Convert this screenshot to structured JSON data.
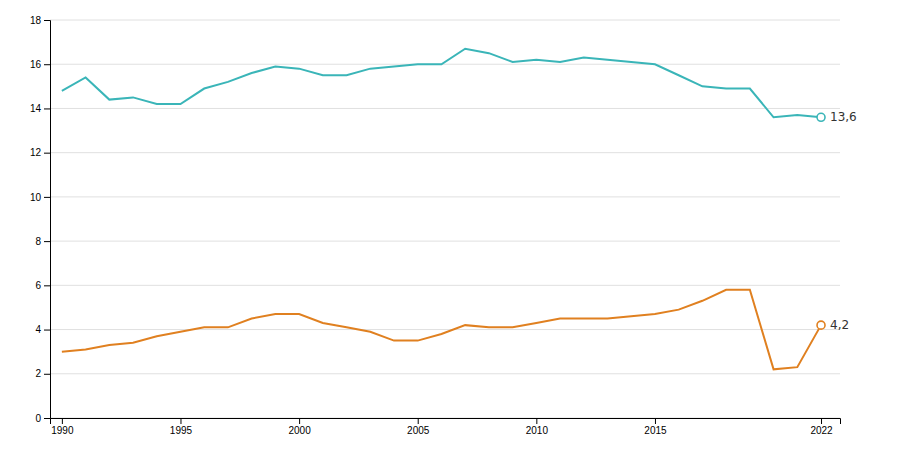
{
  "chart_data": {
    "type": "line",
    "x": [
      1990,
      1991,
      1992,
      1993,
      1994,
      1995,
      1996,
      1997,
      1998,
      1999,
      2000,
      2001,
      2002,
      2003,
      2004,
      2005,
      2006,
      2007,
      2008,
      2009,
      2010,
      2011,
      2012,
      2013,
      2014,
      2015,
      2016,
      2017,
      2018,
      2019,
      2020,
      2021,
      2022
    ],
    "series": [
      {
        "color": "#3ab5b8",
        "values": [
          14.8,
          15.4,
          14.4,
          14.5,
          14.2,
          14.2,
          14.9,
          15.2,
          15.6,
          15.9,
          15.8,
          15.5,
          15.5,
          15.8,
          15.9,
          16.0,
          16.0,
          16.7,
          16.5,
          16.1,
          16.2,
          16.1,
          16.3,
          16.2,
          16.1,
          16.0,
          15.5,
          15.0,
          14.9,
          14.9,
          13.6,
          13.7,
          13.6
        ]
      },
      {
        "color": "#e08020",
        "values": [
          3.0,
          3.1,
          3.3,
          3.4,
          3.7,
          3.9,
          4.1,
          4.1,
          4.5,
          4.7,
          4.7,
          4.3,
          4.1,
          3.9,
          3.5,
          3.5,
          3.8,
          4.2,
          4.1,
          4.1,
          4.3,
          4.5,
          4.5,
          4.5,
          4.6,
          4.7,
          4.9,
          5.3,
          5.8,
          5.8,
          2.2,
          2.3,
          4.2
        ]
      }
    ],
    "annotations": [
      {
        "text": "13,6",
        "x": 2022,
        "y": 13.6
      },
      {
        "text": "4,2",
        "x": 2022,
        "y": 4.2
      }
    ],
    "xlim": [
      1989.5,
      2022.8
    ],
    "xticks": [
      1990,
      1995,
      2000,
      2005,
      2010,
      2015,
      2022
    ],
    "ylim": [
      0,
      18
    ],
    "yticks": [
      0,
      2,
      4,
      6,
      8,
      10,
      12,
      14,
      16,
      18
    ],
    "grid": "y"
  }
}
